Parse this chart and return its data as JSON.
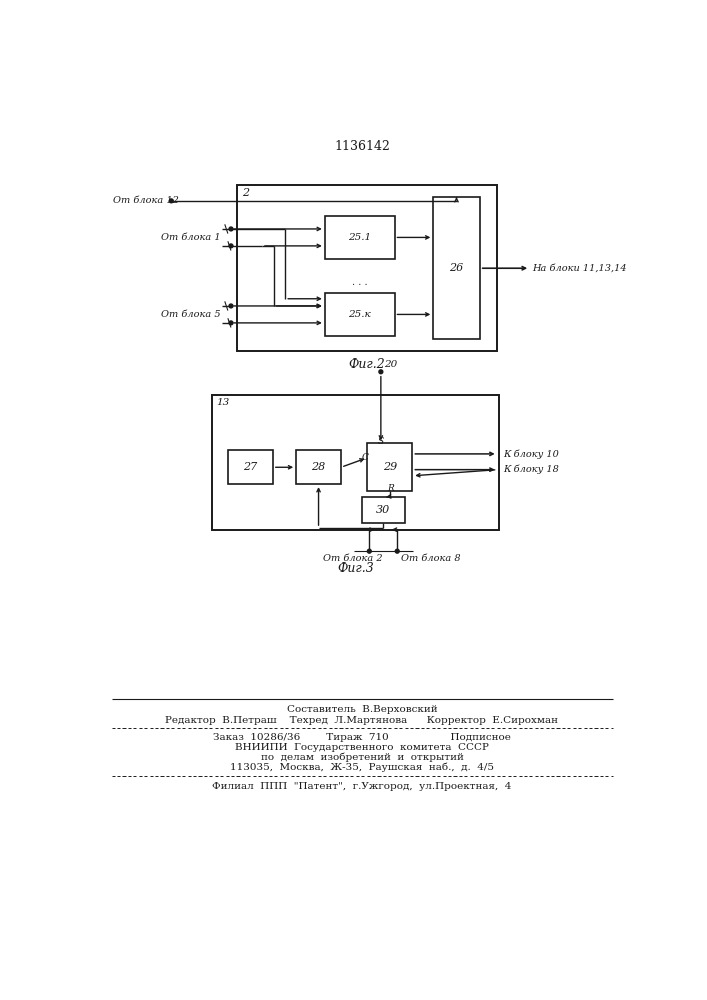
{
  "title": "1136142",
  "fig2_label": "Фиг.2",
  "fig3_label": "Фиг.3",
  "line_color": "#1a1a1a",
  "footer": {
    "line1": "Составитель  В.Верховский",
    "line2": "Редактор  В.Петраш    Техред  Л.Мартянова      Корректор  Е.Сирохман",
    "line3": "Заказ  10286/36        Тираж  710                   Подписное",
    "line4": "ВНИИПИ  Государственного  комитета  СССР",
    "line5": "по  делам  изобретений  и  открытий",
    "line6": "113035,  Москва,  Ж-35,  Раушская  наб.,  д.  4/5",
    "line7": "Филиал  ППП  \"Патент\",  г.Ужгород,  ул.Проектная,  4"
  }
}
